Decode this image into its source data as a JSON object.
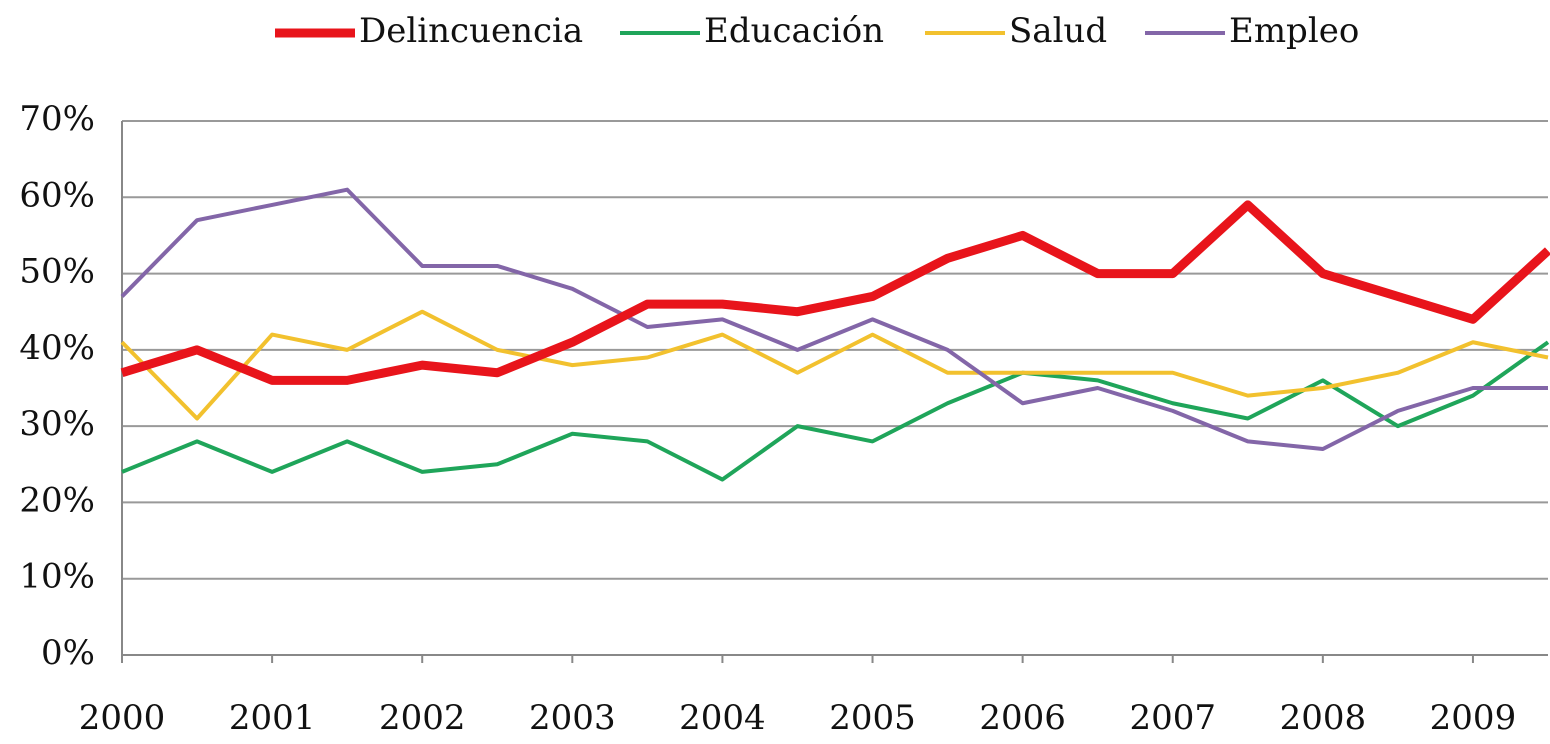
{
  "chart_data": {
    "type": "line",
    "x": [
      2000,
      2000.5,
      2001,
      2001.5,
      2002,
      2002.5,
      2003,
      2003.5,
      2004,
      2004.5,
      2005,
      2005.5,
      2006,
      2006.5,
      2007,
      2007.5,
      2008,
      2008.5,
      2009,
      2009.5
    ],
    "xlim": [
      2000,
      2009.5
    ],
    "xticks": [
      2000,
      2001,
      2002,
      2003,
      2004,
      2005,
      2006,
      2007,
      2008,
      2009
    ],
    "ylim": [
      0,
      70
    ],
    "yticks": [
      {
        "value": 0,
        "label": "0%"
      },
      {
        "value": 10,
        "label": "10%"
      },
      {
        "value": 20,
        "label": "20%"
      },
      {
        "value": 30,
        "label": "30%"
      },
      {
        "value": 40,
        "label": "40%"
      },
      {
        "value": 50,
        "label": "50%"
      },
      {
        "value": 60,
        "label": "60%"
      },
      {
        "value": 70,
        "label": "70%"
      }
    ],
    "grid": true,
    "legend": "top",
    "series": [
      {
        "name": "Delincuencia",
        "color": "#e8141b",
        "width": 9,
        "values": [
          37,
          40,
          36,
          36,
          38,
          37,
          41,
          46,
          46,
          45,
          47,
          52,
          55,
          50,
          50,
          59,
          50,
          47,
          44,
          53
        ]
      },
      {
        "name": "Educación",
        "color": "#1fa55a",
        "width": 4,
        "values": [
          24,
          28,
          24,
          28,
          24,
          25,
          29,
          28,
          23,
          30,
          28,
          33,
          37,
          36,
          33,
          31,
          36,
          30,
          34,
          41
        ]
      },
      {
        "name": "Salud",
        "color": "#f2c12e",
        "width": 4,
        "values": [
          41,
          31,
          42,
          40,
          45,
          40,
          38,
          39,
          42,
          37,
          42,
          37,
          37,
          37,
          37,
          34,
          35,
          37,
          41,
          39
        ]
      },
      {
        "name": "Empleo",
        "color": "#8366a8",
        "width": 4,
        "values": [
          47,
          57,
          59,
          61,
          51,
          51,
          48,
          43,
          44,
          40,
          44,
          40,
          33,
          35,
          32,
          28,
          27,
          32,
          35,
          35
        ]
      }
    ]
  }
}
